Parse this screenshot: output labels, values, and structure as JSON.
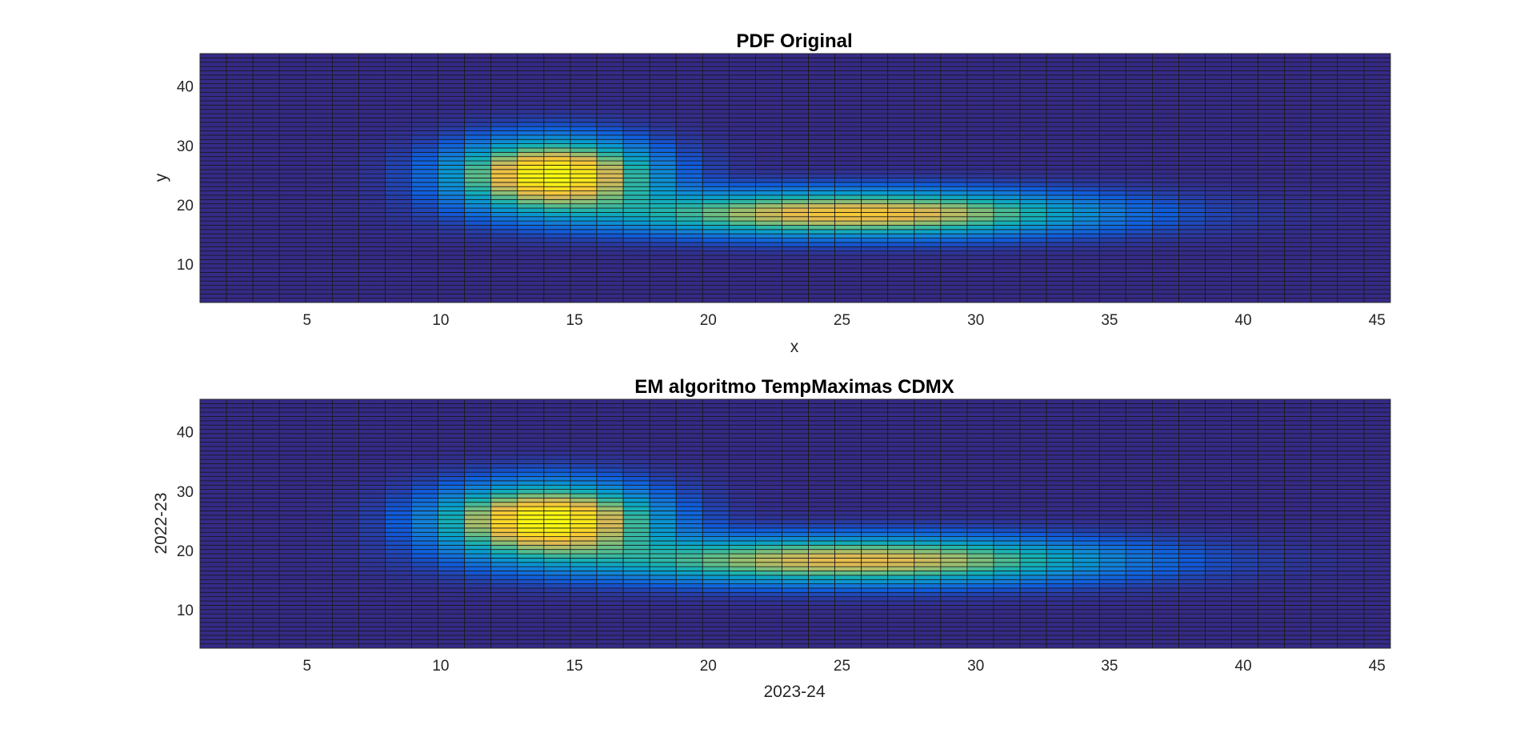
{
  "chart_data": [
    {
      "type": "heatmap",
      "title": "PDF Original",
      "xlabel": "x",
      "ylabel": "y",
      "xlim": [
        1,
        45.5
      ],
      "ylim": [
        3.5,
        45.5
      ],
      "xticks": [
        5,
        10,
        15,
        20,
        25,
        30,
        35,
        40,
        45
      ],
      "yticks": [
        10,
        20,
        30,
        40
      ],
      "grid": {
        "x": [
          1,
          45.5
        ],
        "y": [
          3.5,
          45.5
        ],
        "cols": 45,
        "rows": 58
      },
      "colormap": "parula",
      "components": [
        {
          "mx": 14.2,
          "my": 25,
          "sx": 2.4,
          "sy": 3.8,
          "weight": 1.0
        },
        {
          "mx": 25.5,
          "my": 18.5,
          "sx": 5.8,
          "sy": 2.5,
          "weight": 0.78
        }
      ]
    },
    {
      "type": "heatmap",
      "title": "EM algoritmo TempMaximas CDMX",
      "xlabel": "2023-24",
      "ylabel": "2022-23",
      "xlim": [
        1,
        45.5
      ],
      "ylim": [
        3.5,
        45.5
      ],
      "xticks": [
        5,
        10,
        15,
        20,
        25,
        30,
        35,
        40,
        45
      ],
      "yticks": [
        10,
        20,
        30,
        40
      ],
      "grid": {
        "x": [
          1,
          45.5
        ],
        "y": [
          3.5,
          45.5
        ],
        "cols": 45,
        "rows": 58
      },
      "colormap": "parula",
      "components": [
        {
          "mx": 14.0,
          "my": 25,
          "sx": 2.6,
          "sy": 3.9,
          "weight": 1.0
        },
        {
          "mx": 25.5,
          "my": 18.3,
          "sx": 6.3,
          "sy": 2.6,
          "weight": 0.72
        }
      ]
    }
  ]
}
